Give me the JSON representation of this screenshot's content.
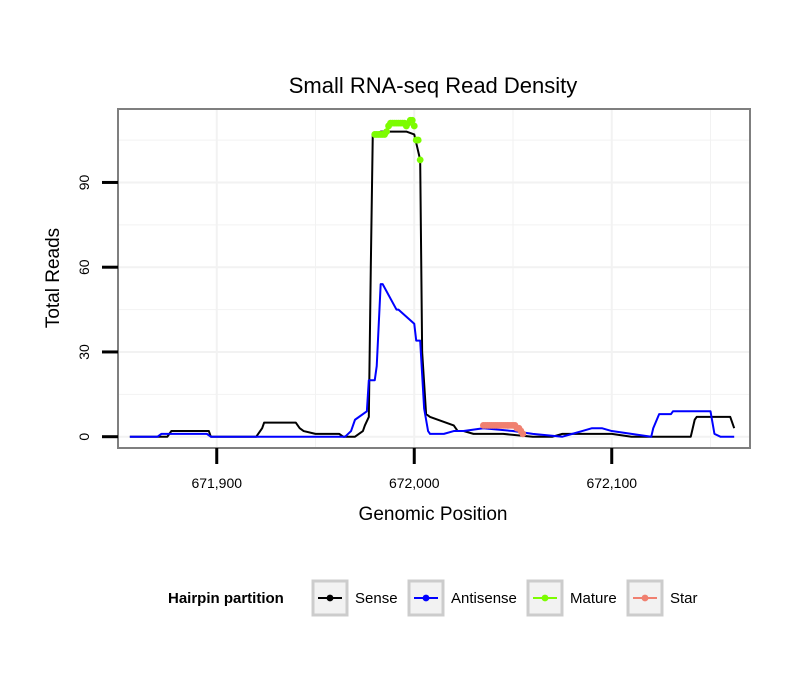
{
  "chart_data": {
    "type": "line",
    "title": "Small RNA-seq Read Density",
    "xlabel": "Genomic Position",
    "ylabel": "Total Reads",
    "xlim": [
      671850,
      672170
    ],
    "ylim": [
      -4,
      116
    ],
    "xticks": [
      671900,
      672000,
      672100
    ],
    "xtick_labels": [
      "671,900",
      "672,000",
      "672,100"
    ],
    "yticks": [
      0,
      30,
      60,
      90
    ],
    "ytick_labels": [
      "0",
      "30",
      "60",
      "90"
    ],
    "grid": true,
    "legend": {
      "title": "Hairpin partition",
      "position": "bottom",
      "items": [
        {
          "label": "Sense",
          "color": "#000000"
        },
        {
          "label": "Antisense",
          "color": "#0000ff"
        },
        {
          "label": "Mature",
          "color": "#7cfc00"
        },
        {
          "label": "Star",
          "color": "#f08070"
        }
      ]
    },
    "series": [
      {
        "name": "Sense",
        "color": "#000000",
        "style": "line",
        "x": [
          671856,
          671875,
          671876,
          671877,
          671883,
          671890,
          671896,
          671897,
          671900,
          671910,
          671920,
          671923,
          671924,
          671940,
          671942,
          671944,
          671950,
          671960,
          671962,
          671964,
          671970,
          671974,
          671975,
          671977,
          671978,
          671979,
          671980,
          671983,
          671996,
          672000,
          672003,
          672004,
          672006,
          672008,
          672020,
          672022,
          672025,
          672030,
          672045,
          672060,
          672070,
          672075,
          672080,
          672090,
          672100,
          672110,
          672120,
          672130,
          672140,
          672141,
          672142,
          672143,
          672150,
          672160,
          672162
        ],
        "y": [
          0,
          0,
          1,
          2,
          2,
          2,
          2,
          0,
          0,
          0,
          0,
          3,
          5,
          5,
          3,
          2,
          1,
          1,
          1,
          0,
          0,
          2,
          4,
          7,
          60,
          107,
          107,
          108,
          108,
          107,
          98,
          30,
          8,
          7,
          4,
          2,
          2,
          1,
          1,
          0,
          0,
          1,
          1,
          1,
          1,
          0,
          0,
          0,
          0,
          3,
          6,
          7,
          7,
          7,
          3
        ]
      },
      {
        "name": "Antisense",
        "color": "#0000ff",
        "style": "line",
        "x": [
          671856,
          671870,
          671872,
          671885,
          671887,
          671895,
          671897,
          671960,
          671965,
          671968,
          671970,
          671976,
          671977,
          671980,
          671981,
          671983,
          671984,
          671991,
          671992,
          672000,
          672001,
          672003,
          672004,
          672005,
          672006,
          672007,
          672008,
          672015,
          672020,
          672025,
          672035,
          672050,
          672060,
          672075,
          672080,
          672085,
          672090,
          672095,
          672100,
          672110,
          672120,
          672121,
          672124,
          672130,
          672131,
          672134,
          672140,
          672150,
          672151,
          672152,
          672155,
          672162
        ],
        "y": [
          0,
          0,
          1,
          1,
          1,
          1,
          0,
          0,
          0,
          2,
          6,
          9,
          20,
          20,
          25,
          54,
          54,
          45,
          45,
          40,
          34,
          34,
          22,
          10,
          6,
          2,
          1,
          1,
          2,
          2,
          3,
          2,
          1,
          0,
          1,
          2,
          3,
          3,
          2,
          1,
          0,
          3,
          8,
          8,
          9,
          9,
          9,
          9,
          5,
          1,
          0,
          0
        ]
      },
      {
        "name": "Mature",
        "color": "#7cfc00",
        "style": "points",
        "x": [
          671980,
          671981,
          671982,
          671983,
          671984,
          671985,
          671986,
          671987,
          671988,
          671989,
          671990,
          671991,
          671992,
          671993,
          671994,
          671995,
          671996,
          671997,
          671998,
          671999,
          672000,
          672001,
          672002,
          672003
        ],
        "y": [
          107,
          107,
          107,
          107,
          107,
          107,
          108,
          110,
          111,
          111,
          111,
          111,
          111,
          111,
          111,
          111,
          110,
          111,
          112,
          112,
          110,
          105,
          105,
          98
        ]
      },
      {
        "name": "Star",
        "color": "#f08070",
        "style": "points",
        "x": [
          672035,
          672036,
          672037,
          672038,
          672039,
          672040,
          672041,
          672042,
          672043,
          672044,
          672045,
          672046,
          672047,
          672048,
          672049,
          672050,
          672051,
          672052,
          672053,
          672054,
          672055
        ],
        "y": [
          4,
          4,
          4,
          4,
          4,
          4,
          4,
          4,
          4,
          4,
          4,
          4,
          4,
          4,
          4,
          4,
          4,
          3,
          3,
          2,
          1
        ]
      }
    ]
  }
}
